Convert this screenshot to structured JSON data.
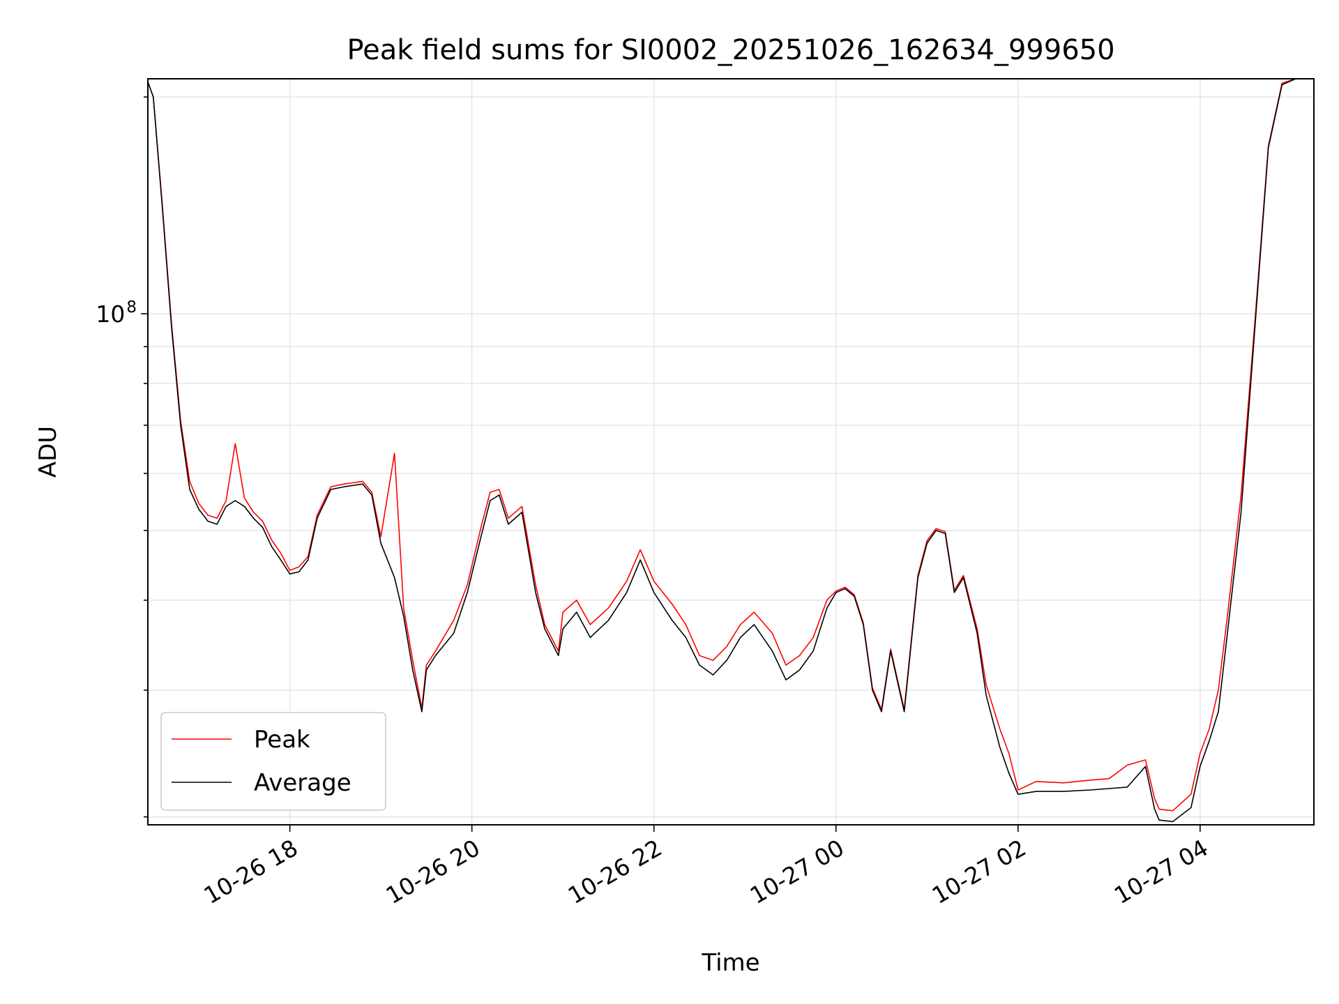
{
  "chart_data": {
    "type": "line",
    "title": "Peak field sums for SI0002_20251026_162634_999650",
    "xlabel": "Time",
    "ylabel": "ADU",
    "yscale": "log",
    "ylim": [
      19500000,
      212000000
    ],
    "xlim": [
      16.44,
      29.25
    ],
    "x_unit": "hours since 2025-10-26 00:00",
    "grid": true,
    "legend_position": "lower-left",
    "colors": {
      "peak": "#ff0000",
      "average": "#000000",
      "grid": "#e6e6e6"
    },
    "xticks": [
      {
        "value": 18,
        "label": "10-26 18"
      },
      {
        "value": 20,
        "label": "10-26 20"
      },
      {
        "value": 22,
        "label": "10-26 22"
      },
      {
        "value": 24,
        "label": "10-27 00"
      },
      {
        "value": 26,
        "label": "10-27 02"
      },
      {
        "value": 28,
        "label": "10-27 04"
      }
    ],
    "yticks_major": [
      {
        "value": 100000000,
        "base": "10",
        "exp": "8"
      }
    ],
    "yticks_minor": [
      20000000,
      30000000,
      40000000,
      50000000,
      60000000,
      70000000,
      80000000,
      90000000,
      200000000
    ],
    "series": [
      {
        "name": "Average",
        "color": "#000000",
        "x": [
          16.44,
          16.5,
          16.6,
          16.7,
          16.8,
          16.9,
          17.0,
          17.1,
          17.2,
          17.3,
          17.4,
          17.5,
          17.6,
          17.7,
          17.8,
          17.9,
          18.0,
          18.1,
          18.2,
          18.3,
          18.45,
          18.6,
          18.8,
          18.9,
          19.0,
          19.15,
          19.25,
          19.35,
          19.45,
          19.5,
          19.6,
          19.8,
          19.95,
          20.1,
          20.2,
          20.3,
          20.4,
          20.55,
          20.7,
          20.8,
          20.95,
          21.0,
          21.15,
          21.3,
          21.5,
          21.7,
          21.85,
          22.0,
          22.2,
          22.35,
          22.5,
          22.65,
          22.8,
          22.95,
          23.1,
          23.3,
          23.45,
          23.6,
          23.75,
          23.9,
          24.0,
          24.1,
          24.2,
          24.3,
          24.4,
          24.5,
          24.6,
          24.75,
          24.9,
          25.0,
          25.1,
          25.2,
          25.3,
          25.4,
          25.55,
          25.65,
          25.8,
          25.9,
          26.0,
          26.2,
          26.5,
          26.8,
          27.0,
          27.2,
          27.4,
          27.5,
          27.55,
          27.7,
          27.9,
          28.0,
          28.1,
          28.2,
          28.3,
          28.45,
          28.6,
          28.75,
          28.9,
          29.05,
          29.25
        ],
        "values": [
          210000000,
          200000000,
          140000000,
          96000000,
          70000000,
          57000000,
          53500000,
          51500000,
          51000000,
          54000000,
          55000000,
          54000000,
          52000000,
          50500000,
          47500000,
          45500000,
          43500000,
          43800000,
          45500000,
          52000000,
          57000000,
          57500000,
          58000000,
          56000000,
          48000000,
          43000000,
          38000000,
          32000000,
          28000000,
          32000000,
          33500000,
          36000000,
          41000000,
          49000000,
          55000000,
          56000000,
          51000000,
          53000000,
          41000000,
          36500000,
          33500000,
          36500000,
          38500000,
          35500000,
          37500000,
          41000000,
          45500000,
          41000000,
          37500000,
          35500000,
          32500000,
          31500000,
          33000000,
          35500000,
          37000000,
          34000000,
          31000000,
          32000000,
          34000000,
          39000000,
          41000000,
          41500000,
          40500000,
          37000000,
          30000000,
          28000000,
          34000000,
          28000000,
          43000000,
          48000000,
          50000000,
          49500000,
          41000000,
          43000000,
          36000000,
          29500000,
          25000000,
          23000000,
          21500000,
          21700000,
          21700000,
          21800000,
          21900000,
          22000000,
          23500000,
          20500000,
          19800000,
          19700000,
          20600000,
          23500000,
          25500000,
          28000000,
          36000000,
          53000000,
          95000000,
          170000000,
          208000000,
          212000000,
          212000000
        ]
      },
      {
        "name": "Peak",
        "color": "#ff0000",
        "x": [
          16.44,
          16.5,
          16.6,
          16.7,
          16.8,
          16.9,
          17.0,
          17.1,
          17.2,
          17.3,
          17.4,
          17.5,
          17.6,
          17.7,
          17.8,
          17.9,
          18.0,
          18.1,
          18.2,
          18.3,
          18.45,
          18.6,
          18.8,
          18.9,
          19.0,
          19.15,
          19.25,
          19.35,
          19.45,
          19.5,
          19.6,
          19.8,
          19.95,
          20.1,
          20.2,
          20.3,
          20.4,
          20.55,
          20.7,
          20.8,
          20.95,
          21.0,
          21.15,
          21.3,
          21.5,
          21.7,
          21.85,
          22.0,
          22.2,
          22.35,
          22.5,
          22.65,
          22.8,
          22.95,
          23.1,
          23.3,
          23.45,
          23.6,
          23.75,
          23.9,
          24.0,
          24.1,
          24.2,
          24.3,
          24.4,
          24.5,
          24.6,
          24.75,
          24.9,
          25.0,
          25.1,
          25.2,
          25.3,
          25.4,
          25.55,
          25.65,
          25.8,
          25.9,
          26.0,
          26.2,
          26.5,
          26.8,
          27.0,
          27.2,
          27.4,
          27.5,
          27.55,
          27.7,
          27.9,
          28.0,
          28.1,
          28.2,
          28.3,
          28.45,
          28.6,
          28.75,
          28.9,
          29.05,
          29.25
        ],
        "values": [
          210000000,
          200000000,
          141000000,
          97000000,
          71000000,
          58500000,
          54500000,
          52500000,
          52000000,
          55000000,
          66000000,
          55500000,
          53000000,
          51500000,
          48500000,
          46500000,
          44000000,
          44500000,
          46000000,
          52500000,
          57500000,
          58000000,
          58500000,
          56500000,
          49000000,
          64000000,
          39000000,
          33000000,
          28300000,
          32500000,
          34000000,
          37500000,
          42000000,
          50500000,
          56500000,
          57000000,
          52000000,
          54000000,
          42000000,
          37000000,
          34000000,
          38500000,
          40000000,
          37000000,
          39000000,
          42500000,
          47000000,
          42500000,
          39500000,
          37000000,
          33500000,
          33000000,
          34500000,
          37000000,
          38500000,
          36000000,
          32500000,
          33500000,
          35500000,
          40000000,
          41200000,
          41700000,
          40700000,
          37200000,
          30200000,
          28200000,
          34200000,
          28200000,
          43300000,
          48400000,
          50300000,
          49800000,
          41300000,
          43300000,
          36500000,
          30500000,
          26500000,
          24500000,
          21800000,
          22400000,
          22300000,
          22500000,
          22600000,
          23600000,
          24000000,
          21200000,
          20500000,
          20400000,
          21500000,
          24500000,
          26500000,
          30000000,
          38000000,
          56000000,
          97000000,
          171000000,
          209000000,
          212000000,
          212000000
        ]
      }
    ],
    "legend": [
      {
        "label": "Peak",
        "color": "#ff0000"
      },
      {
        "label": "Average",
        "color": "#000000"
      }
    ]
  }
}
